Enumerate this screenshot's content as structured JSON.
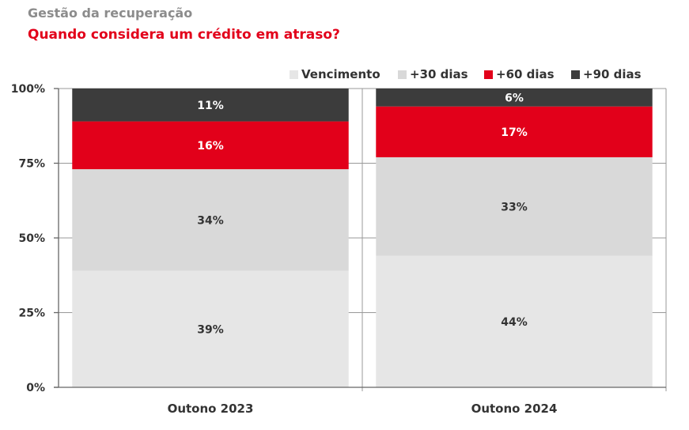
{
  "header": {
    "title": "Gestão da recuperação",
    "subtitle": "Quando considera um crédito em atraso?"
  },
  "chart_data": {
    "type": "bar",
    "stacked": true,
    "title": "Quando considera um crédito em atraso?",
    "categories": [
      "Outono 2023",
      "Outono 2024"
    ],
    "series": [
      {
        "name": "Vencimento",
        "values": [
          39,
          44
        ],
        "color": "#e6e6e6",
        "label_color": "#333333"
      },
      {
        "name": "+30 dias",
        "values": [
          34,
          33
        ],
        "color": "#d9d9d9",
        "label_color": "#333333"
      },
      {
        "name": "+60 dias",
        "values": [
          16,
          17
        ],
        "color": "#e2001a",
        "label_color": "#ffffff"
      },
      {
        "name": "+90 dias",
        "values": [
          11,
          6
        ],
        "color": "#3c3c3c",
        "label_color": "#ffffff"
      }
    ],
    "yticks": [
      "0%",
      "25%",
      "50%",
      "75%",
      "100%"
    ],
    "ylim": [
      0,
      100
    ],
    "grid": true,
    "legend_position": "top-right",
    "unit": "%"
  }
}
